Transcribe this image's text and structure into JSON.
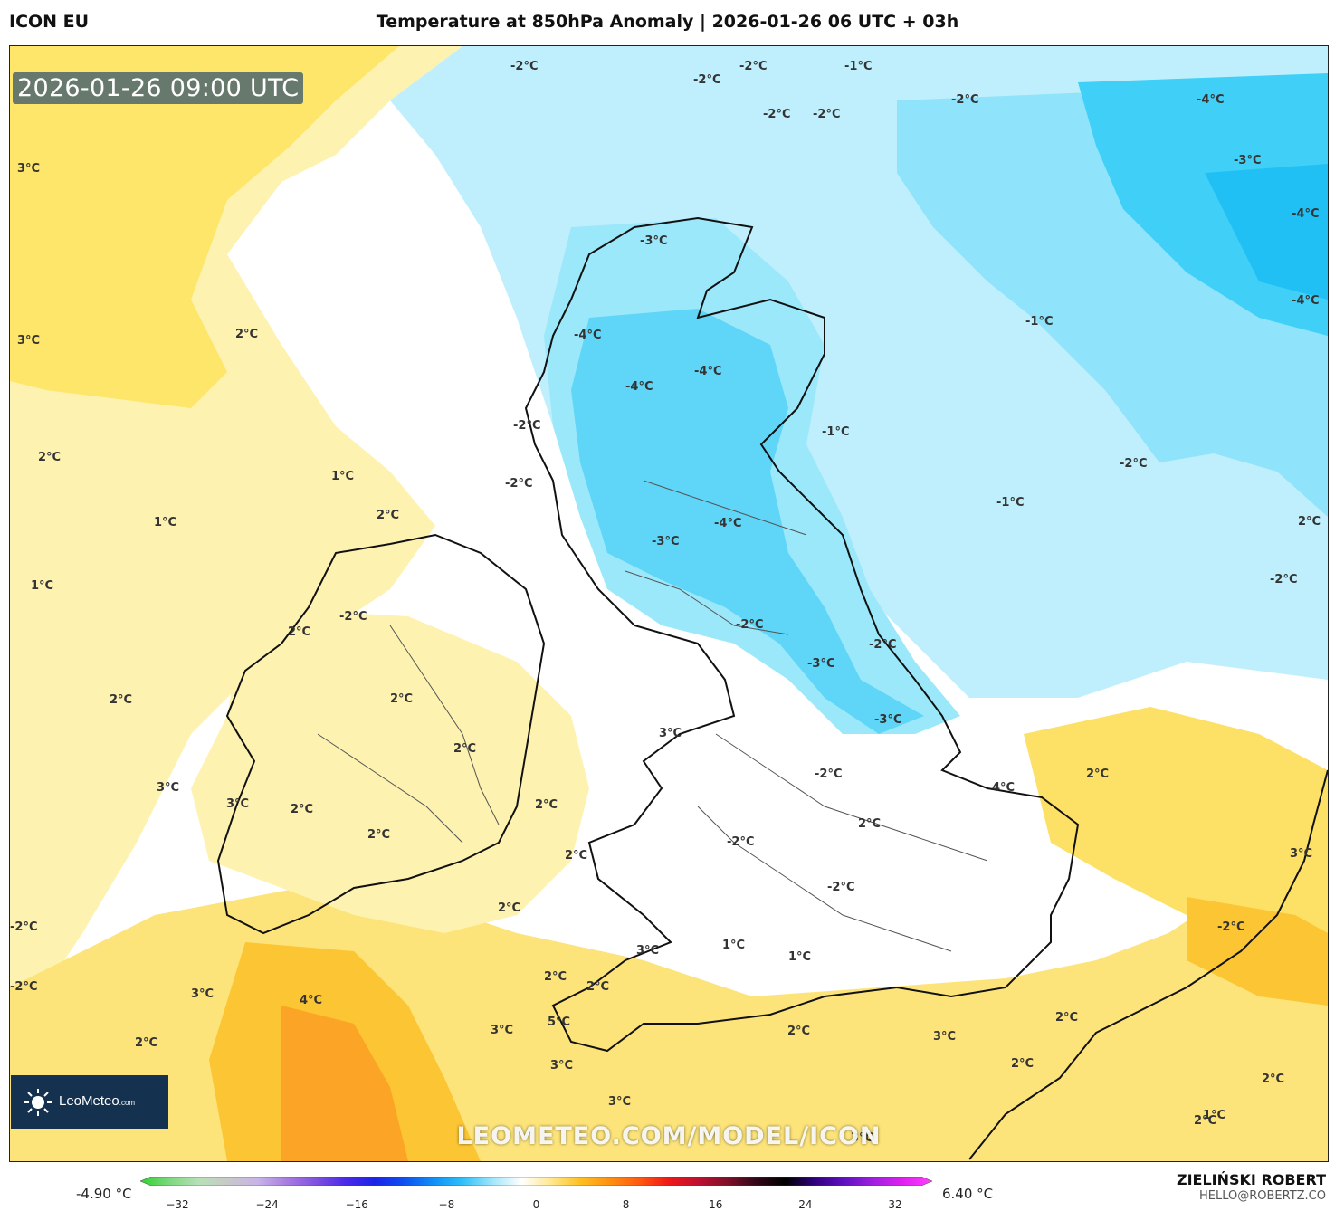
{
  "header": {
    "model": "ICON EU",
    "title": "Temperature at 850hPa Anomaly | 2026-01-26 06 UTC + 03h"
  },
  "map": {
    "valid_time": "2026-01-26 09:00 UTC",
    "watermark": "LEOMETEO.COM/MODEL/ICON",
    "logo_text": "LeoMeteo",
    "logo_suffix": ".com",
    "labels": [
      "-2°C",
      "-2°C",
      "-2°C",
      "-1°C",
      "-2°C",
      "-2°C",
      "-2°C",
      "-4°C",
      "-3°C",
      "-4°C",
      "3°C",
      "-3°C",
      "2°C",
      "-4°C",
      "3°C",
      "-1°C",
      "-4°C",
      "-4°C",
      "-4°C",
      "-2°C",
      "-1°C",
      "2°C",
      "1°C",
      "-2°C",
      "-2°C",
      "1°C",
      "-1°C",
      "2°C",
      "-4°C",
      "2°C",
      "-3°C",
      "-2°C",
      "1°C",
      "-2°C",
      "-2°C",
      "2°C",
      "-3°C",
      "-2°C",
      "2°C",
      "3°C",
      "2°C",
      "-3°C",
      "3°C",
      "2°C",
      "4°C",
      "2°C",
      "3°C",
      "2°C",
      "2°C",
      "-2°C",
      "2°C",
      "3°C",
      "2°C",
      "2°C",
      "-2°C",
      "-2°C",
      "2°C",
      "-2°C",
      "-2°C",
      "1°C",
      "3°C",
      "1°C",
      "-2°C",
      "3°C",
      "4°C",
      "2°C",
      "3°C",
      "5°C",
      "2°C",
      "2°C",
      "3°C",
      "3°C",
      "2°C",
      "2°C",
      "2°C",
      "2°C",
      "3°C",
      "2°C",
      "1°C",
      "3°C"
    ]
  },
  "colorbar": {
    "min_label": "-4.90 °C",
    "max_label": "6.40 °C",
    "ticks": [
      "-32",
      "-24",
      "-16",
      "-8",
      "0",
      "8",
      "16",
      "24",
      "32"
    ],
    "colors": [
      "#2fd12f",
      "#7fd87f",
      "#b8e0b8",
      "#c8c8c8",
      "#c8b4e8",
      "#a87ce0",
      "#8050e0",
      "#4a2ae8",
      "#1a24e8",
      "#0e50f0",
      "#1090f5",
      "#30c0f8",
      "#a0e6fb",
      "#ffffff",
      "#ffe890",
      "#ffc020",
      "#ff9010",
      "#ff5a10",
      "#f01818",
      "#c01030",
      "#801028",
      "#300818",
      "#000000",
      "#300080",
      "#6010c0",
      "#a020e0",
      "#e020f0",
      "#ff40ff"
    ]
  },
  "credits": {
    "author": "ZIELIŃSKI ROBERT",
    "email": "HELLO@ROBERTZ.CO"
  }
}
